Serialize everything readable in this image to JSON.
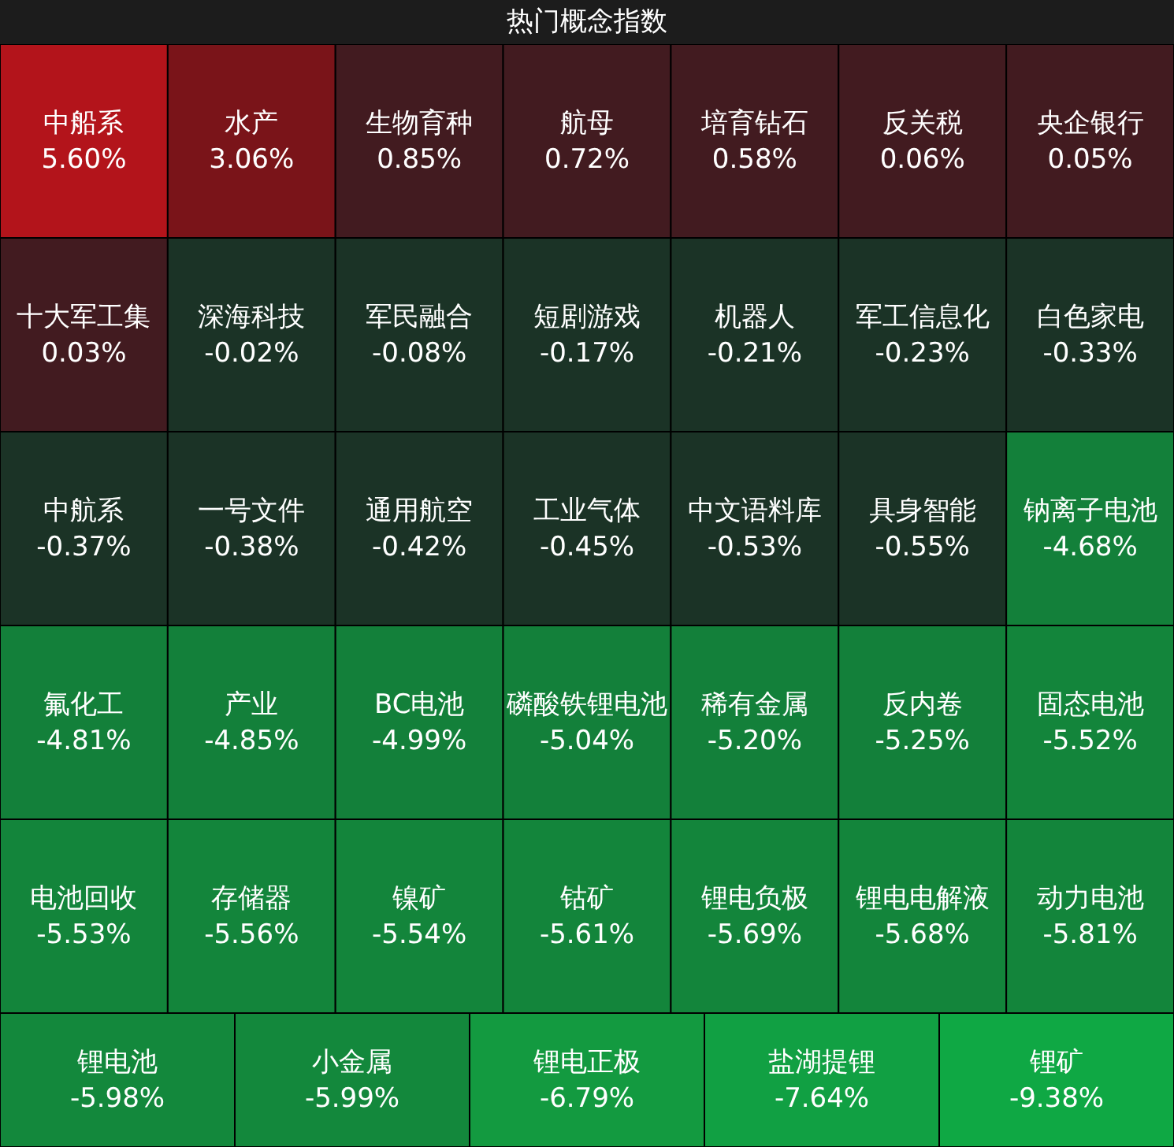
{
  "chart_data": {
    "type": "other",
    "title": "热门概念指数",
    "categories": [
      "中船系",
      "水产",
      "生物育种",
      "航母",
      "培育钻石",
      "反关税",
      "央企银行",
      "十大军工集",
      "深海科技",
      "军民融合",
      "短剧游戏",
      "机器人",
      "军工信息化",
      "白色家电",
      "中航系",
      "一号文件",
      "通用航空",
      "工业气体",
      "中文语料库",
      "具身智能",
      "钠离子电池",
      "氟化工",
      "产业",
      "BC电池",
      "磷酸铁锂电池",
      "稀有金属",
      "反内卷",
      "固态电池",
      "电池回收",
      "存储器",
      "镍矿",
      "钴矿",
      "锂电负极",
      "锂电电解液",
      "动力电池",
      "锂电池",
      "小金属",
      "锂电正极",
      "盐湖提锂",
      "锂矿"
    ],
    "values": [
      5.6,
      3.06,
      0.85,
      0.72,
      0.58,
      0.06,
      0.05,
      0.03,
      -0.02,
      -0.08,
      -0.17,
      -0.21,
      -0.23,
      -0.33,
      -0.37,
      -0.38,
      -0.42,
      -0.45,
      -0.53,
      -0.55,
      -4.68,
      -4.81,
      -4.85,
      -4.99,
      -5.04,
      -5.2,
      -5.25,
      -5.52,
      -5.53,
      -5.56,
      -5.54,
      -5.61,
      -5.69,
      -5.68,
      -5.81,
      -5.98,
      -5.99,
      -6.79,
      -7.64,
      -9.38
    ],
    "value_labels": [
      "5.60%",
      "3.06%",
      "0.85%",
      "0.72%",
      "0.58%",
      "0.06%",
      "0.05%",
      "0.03%",
      "-0.02%",
      "-0.08%",
      "-0.17%",
      "-0.21%",
      "-0.23%",
      "-0.33%",
      "-0.37%",
      "-0.38%",
      "-0.42%",
      "-0.45%",
      "-0.53%",
      "-0.55%",
      "-4.68%",
      "-4.81%",
      "-4.85%",
      "-4.99%",
      "-5.04%",
      "-5.20%",
      "-5.25%",
      "-5.52%",
      "-5.53%",
      "-5.56%",
      "-5.54%",
      "-5.61%",
      "-5.69%",
      "-5.68%",
      "-5.81%",
      "-5.98%",
      "-5.99%",
      "-6.79%",
      "-7.64%",
      "-9.38%"
    ],
    "colors": [
      "#b3141b",
      "#7a1419",
      "#421b20",
      "#421b20",
      "#421b20",
      "#421b20",
      "#421b20",
      "#421b20",
      "#1b3326",
      "#1b3326",
      "#1b3326",
      "#1b3326",
      "#1b3326",
      "#1b3326",
      "#1b3326",
      "#1b3326",
      "#1b3326",
      "#1b3326",
      "#1b3326",
      "#1b3326",
      "#13803a",
      "#13803a",
      "#13803a",
      "#13803a",
      "#13803a",
      "#13803a",
      "#13803a",
      "#13853b",
      "#13853b",
      "#13853b",
      "#13853b",
      "#13853b",
      "#13853b",
      "#13853b",
      "#13853b",
      "#13883c",
      "#13883c",
      "#139a40",
      "#11a043",
      "#0fa844"
    ]
  }
}
